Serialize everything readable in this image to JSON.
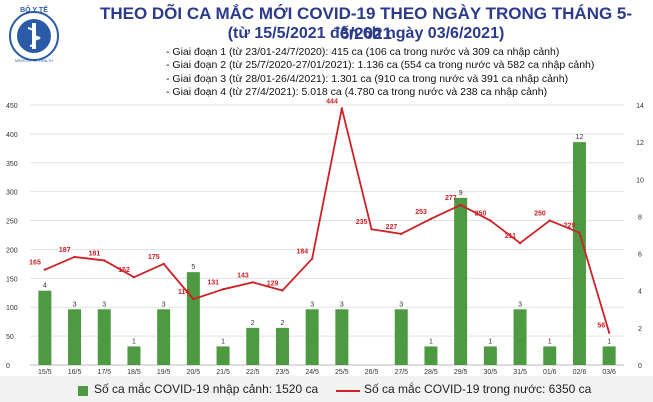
{
  "header": {
    "logo_text": "BỘ Y TẾ",
    "logo_subtext": "MINISTRY OF HEALTH",
    "title": "THEO DÕI CA MẮC MỚI COVID-19 THEO NGÀY TRONG THÁNG 5-6/2021",
    "subtitle": "(từ 15/5/2021 đến 6h ngày 03/6/2021)"
  },
  "notes": [
    "- Giai đoạn 1 (từ 23/01-24/7/2020): 415 ca (106 ca trong nước và 309 ca nhập cảnh)",
    "- Giai đoạn 2 (từ 25/7/2020-27/01/2021): 1.136 ca (554 ca trong nước và 582 ca nhập cảnh)",
    "- Giai đoạn 3 (từ 28/01-26/4/2021): 1.301 ca (910 ca trong nước và 391 ca nhập cảnh)",
    "- Giai đoạn 4 (từ 27/4/2021): 5.018 ca (4.780 ca trong nước và 238 ca nhập cảnh)"
  ],
  "colors": {
    "bar": "#4e9a43",
    "line": "#cc2227",
    "title": "#2b3a8a",
    "grid": "#e3e3e3"
  },
  "legend": {
    "bar_label": "Số ca mắc COVID-19 nhập cảnh: 1520 ca",
    "line_label": "Số ca mắc COVID-19 trong nước: 6350 ca"
  },
  "chart_data": {
    "type": "bar",
    "categories": [
      "15/5",
      "16/5",
      "17/5",
      "18/5",
      "19/5",
      "20/5",
      "21/5",
      "22/5",
      "23/5",
      "24/5",
      "25/5",
      "26/5",
      "27/5",
      "28/5",
      "29/5",
      "30/5",
      "31/5",
      "01/6",
      "02/6",
      "03/6"
    ],
    "series": [
      {
        "name": "Số ca mắc COVID-19 nhập cảnh: 1520 ca",
        "type": "bar",
        "axis": "right",
        "values": [
          4,
          3,
          3,
          1,
          3,
          5,
          1,
          2,
          2,
          3,
          3,
          null,
          3,
          1,
          9,
          1,
          3,
          1,
          12,
          1
        ]
      },
      {
        "name": "Số ca mắc COVID-19 trong nước: 6350 ca",
        "type": "line",
        "axis": "left",
        "values": [
          165,
          187,
          181,
          152,
          175,
          114,
          131,
          143,
          129,
          184,
          444,
          235,
          227,
          253,
          277,
          250,
          211,
          250,
          229,
          56
        ]
      }
    ],
    "left_axis": {
      "min": 0,
      "max": 450,
      "ticks": [
        0,
        50,
        100,
        150,
        200,
        250,
        300,
        350,
        400,
        450
      ]
    },
    "right_axis": {
      "min": 0,
      "max": 14,
      "ticks": [
        0,
        2,
        4,
        6,
        8,
        10,
        12,
        14
      ]
    },
    "grid": true,
    "legend_position": "bottom"
  }
}
